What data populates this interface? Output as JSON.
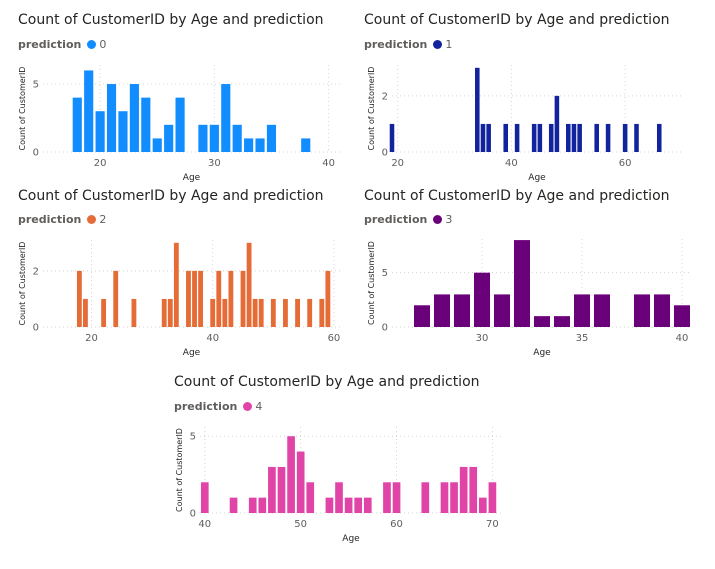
{
  "chart_data": [
    {
      "type": "bar",
      "title": "Count of CustomerID by Age and prediction",
      "legend_title": "prediction",
      "legend": "0",
      "color": "#118DFF",
      "xlabel": "Age",
      "ylabel": "Count of CustomerID",
      "xlim": [
        15,
        41
      ],
      "ylim": [
        0,
        6.4
      ],
      "xticks": [
        20,
        30,
        40
      ],
      "yticks": [
        0,
        5
      ],
      "grid": true,
      "legend_position": "top-left",
      "x": [
        18,
        19,
        20,
        21,
        22,
        23,
        24,
        25,
        26,
        27,
        29,
        30,
        31,
        32,
        33,
        34,
        35,
        38
      ],
      "values": [
        4,
        6,
        3,
        5,
        3,
        5,
        4,
        1,
        2,
        4,
        2,
        2,
        5,
        2,
        1,
        1,
        2,
        1
      ]
    },
    {
      "type": "bar",
      "title": "Count of CustomerID by Age and prediction",
      "legend_title": "prediction",
      "legend": "1",
      "color": "#12239E",
      "xlabel": "Age",
      "ylabel": "Count of CustomerID",
      "xlim": [
        19,
        70
      ],
      "ylim": [
        0,
        3.1
      ],
      "xticks": [
        20,
        40,
        60
      ],
      "yticks": [
        0,
        2
      ],
      "grid": true,
      "legend_position": "top-left",
      "x": [
        19,
        34,
        35,
        36,
        39,
        41,
        44,
        45,
        47,
        48,
        50,
        51,
        52,
        55,
        57,
        60,
        62,
        66
      ],
      "values": [
        1,
        3,
        1,
        1,
        1,
        1,
        1,
        1,
        1,
        2,
        1,
        1,
        1,
        1,
        1,
        1,
        1,
        1
      ]
    },
    {
      "type": "bar",
      "title": "Count of CustomerID by Age and prediction",
      "legend_title": "prediction",
      "legend": "2",
      "color": "#E66C37",
      "xlabel": "Age",
      "ylabel": "Count of CustomerID",
      "xlim": [
        12,
        61
      ],
      "ylim": [
        0,
        3.1
      ],
      "xticks": [
        20,
        40,
        60
      ],
      "yticks": [
        0,
        2
      ],
      "grid": true,
      "legend_position": "top-left",
      "x": [
        18,
        19,
        22,
        24,
        27,
        32,
        33,
        34,
        36,
        37,
        38,
        40,
        41,
        42,
        43,
        45,
        46,
        47,
        48,
        50,
        52,
        54,
        56,
        58,
        59
      ],
      "values": [
        2,
        1,
        1,
        2,
        1,
        1,
        1,
        3,
        2,
        2,
        2,
        1,
        2,
        1,
        2,
        2,
        3,
        1,
        1,
        1,
        1,
        1,
        1,
        1,
        2
      ]
    },
    {
      "type": "bar",
      "title": "Count of CustomerID by Age and prediction",
      "legend_title": "prediction",
      "legend": "3",
      "color": "#6B007B",
      "xlabel": "Age",
      "ylabel": "Count of CustomerID",
      "xlim": [
        25.5,
        40.5
      ],
      "ylim": [
        0,
        8.1
      ],
      "xticks": [
        30,
        35,
        40
      ],
      "yticks": [
        0,
        5
      ],
      "grid": true,
      "legend_position": "top-left",
      "x": [
        27,
        28,
        29,
        30,
        31,
        32,
        33,
        34,
        35,
        36,
        38,
        39,
        40
      ],
      "values": [
        2,
        3,
        3,
        5,
        3,
        8,
        1,
        1,
        3,
        3,
        3,
        3,
        2
      ]
    },
    {
      "type": "bar",
      "title": "Count of CustomerID by Age and prediction",
      "legend_title": "prediction",
      "legend": "4",
      "color": "#E044A7",
      "xlabel": "Age",
      "ylabel": "Count of CustomerID",
      "xlim": [
        39.5,
        71
      ],
      "ylim": [
        0,
        5.6
      ],
      "xticks": [
        40,
        50,
        60,
        70
      ],
      "yticks": [
        0,
        5
      ],
      "grid": true,
      "legend_position": "top-left",
      "x": [
        40,
        43,
        45,
        46,
        47,
        48,
        49,
        50,
        51,
        53,
        54,
        55,
        56,
        57,
        59,
        60,
        63,
        65,
        66,
        67,
        68,
        69,
        70
      ],
      "values": [
        2,
        1,
        1,
        1,
        3,
        3,
        5,
        4,
        2,
        1,
        2,
        1,
        1,
        1,
        2,
        2,
        2,
        2,
        2,
        3,
        3,
        1,
        2
      ]
    }
  ]
}
